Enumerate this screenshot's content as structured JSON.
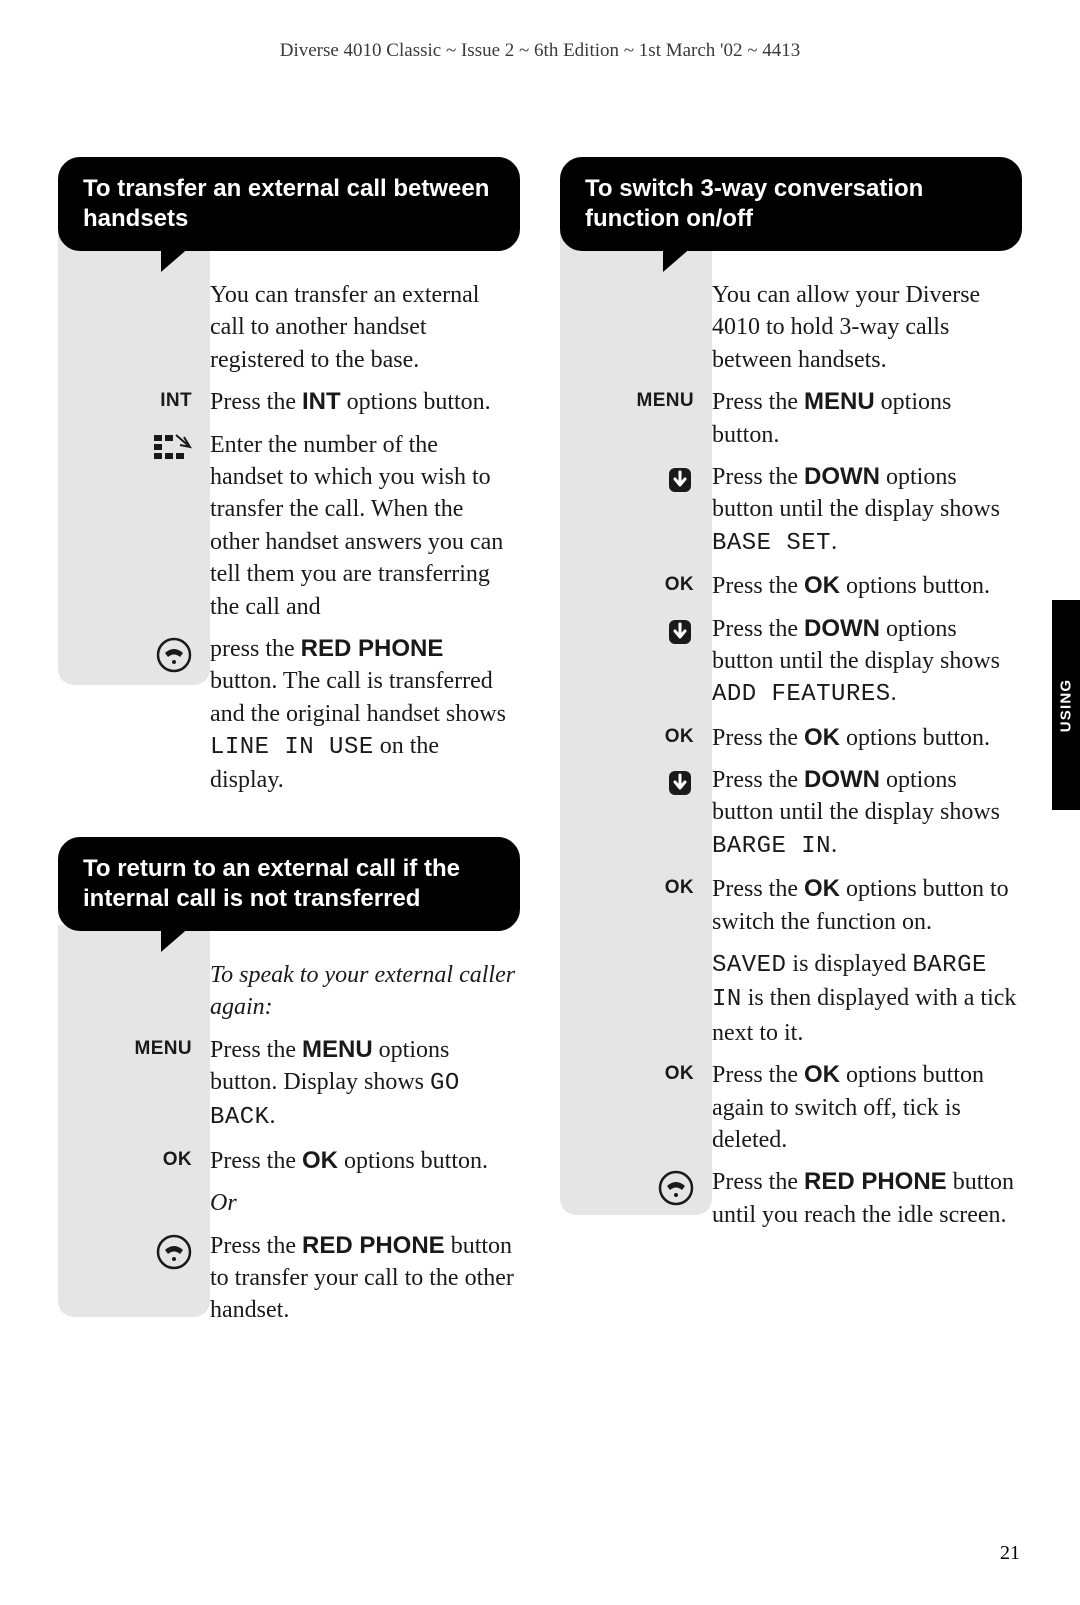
{
  "header": "Diverse 4010 Classic ~ Issue 2 ~ 6th Edition ~ 1st March '02 ~ 4413",
  "side_tab": "USING",
  "page_number": "21",
  "colors": {
    "page_bg": "#ffffff",
    "grey_col": "#e5e5e5",
    "header_bg": "#000000",
    "text": "#1a1a1a"
  },
  "left": {
    "s1": {
      "title": "To transfer an external call between handsets",
      "rows": [
        {
          "icon": "none",
          "text": "You can transfer an external call to another handset registered to the base."
        },
        {
          "icon": "INT",
          "parts": [
            "Press the ",
            "INT",
            " options button."
          ]
        },
        {
          "icon": "keypad",
          "text": "Enter the number of the handset to which you wish to transfer the call. When the other handset answers you can tell them you are transferring the call and"
        },
        {
          "icon": "redphone",
          "parts": [
            "press the ",
            "RED PHONE",
            " button. The call is transferred and the original handset shows ",
            "LINE IN USE",
            " on the display."
          ]
        }
      ]
    },
    "s2": {
      "title": "To return to an external call if the internal call is not transferred",
      "rows": [
        {
          "icon": "none",
          "italic": true,
          "text": "To speak to your external caller again:"
        },
        {
          "icon": "MENU",
          "parts": [
            "Press the ",
            "MENU",
            " options button. Display shows ",
            "GO BACK",
            "."
          ]
        },
        {
          "icon": "OK",
          "parts": [
            "Press the ",
            "OK",
            " options button."
          ]
        },
        {
          "icon": "none",
          "italic": true,
          "text": "Or"
        },
        {
          "icon": "redphone",
          "parts": [
            "Press the ",
            "RED PHONE",
            " button to transfer your call to the other handset."
          ]
        }
      ]
    }
  },
  "right": {
    "s1": {
      "title": "To switch 3-way conversation function on/off",
      "rows": [
        {
          "icon": "none",
          "text": "You can allow your Diverse 4010 to hold 3-way calls between handsets."
        },
        {
          "icon": "MENU",
          "parts": [
            "Press the ",
            "MENU",
            " options button."
          ]
        },
        {
          "icon": "down",
          "parts": [
            "Press the ",
            "DOWN",
            " options button until the display shows ",
            "BASE SET",
            "."
          ]
        },
        {
          "icon": "OK",
          "parts": [
            "Press the ",
            "OK",
            " options button."
          ]
        },
        {
          "icon": "down",
          "parts": [
            "Press the ",
            "DOWN",
            " options button until the display shows ",
            "ADD FEATURES",
            "."
          ]
        },
        {
          "icon": "OK",
          "parts": [
            "Press the ",
            "OK",
            " options button."
          ]
        },
        {
          "icon": "down",
          "parts": [
            "Press the ",
            "DOWN",
            " options button until the display shows ",
            "BARGE IN",
            "."
          ]
        },
        {
          "icon": "OK",
          "parts": [
            "Press the ",
            "OK",
            " options button to switch the function on."
          ]
        },
        {
          "icon": "none",
          "parts_lcd": [
            "SAVED",
            " is displayed ",
            "BARGE IN",
            " is then displayed with a tick next to it."
          ]
        },
        {
          "icon": "OK",
          "parts": [
            "Press the ",
            "OK",
            " options button again to switch off, tick is deleted."
          ]
        },
        {
          "icon": "redphone",
          "parts": [
            "Press the ",
            "RED PHONE",
            " button until you reach the idle screen."
          ]
        }
      ]
    }
  }
}
